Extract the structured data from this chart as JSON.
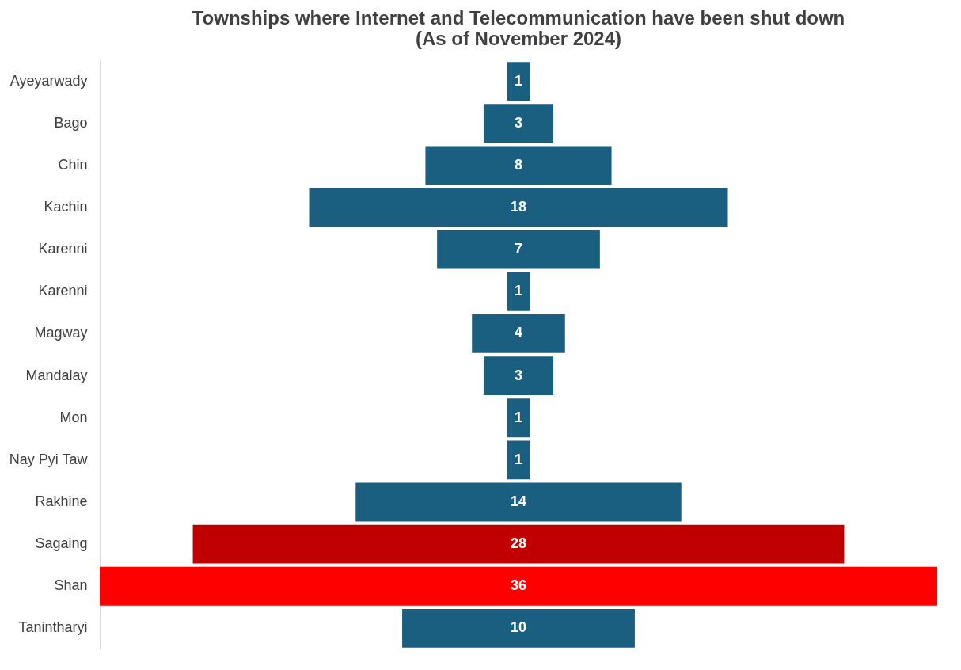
{
  "chart_data": {
    "type": "other",
    "title": "Townships where Internet and Telecommunication have been shut down\n(As of November 2024)",
    "categories": [
      "Ayeyarwady",
      "Bago",
      "Chin",
      "Kachin",
      "Karenni",
      "Karenni",
      "Magway",
      "Mandalay",
      "Mon",
      "Nay Pyi Taw",
      "Rakhine",
      "Sagaing",
      "Shan",
      "Tanintharyi"
    ],
    "values": [
      1,
      3,
      8,
      18,
      7,
      1,
      4,
      3,
      1,
      1,
      14,
      28,
      36,
      10
    ],
    "colors": [
      "#1a5e80",
      "#1a5e80",
      "#1a5e80",
      "#1a5e80",
      "#1a5e80",
      "#1a5e80",
      "#1a5e80",
      "#1a5e80",
      "#1a5e80",
      "#1a5e80",
      "#1a5e80",
      "#c00000",
      "#ff0000",
      "#1a5e80"
    ],
    "data_labels": true
  }
}
